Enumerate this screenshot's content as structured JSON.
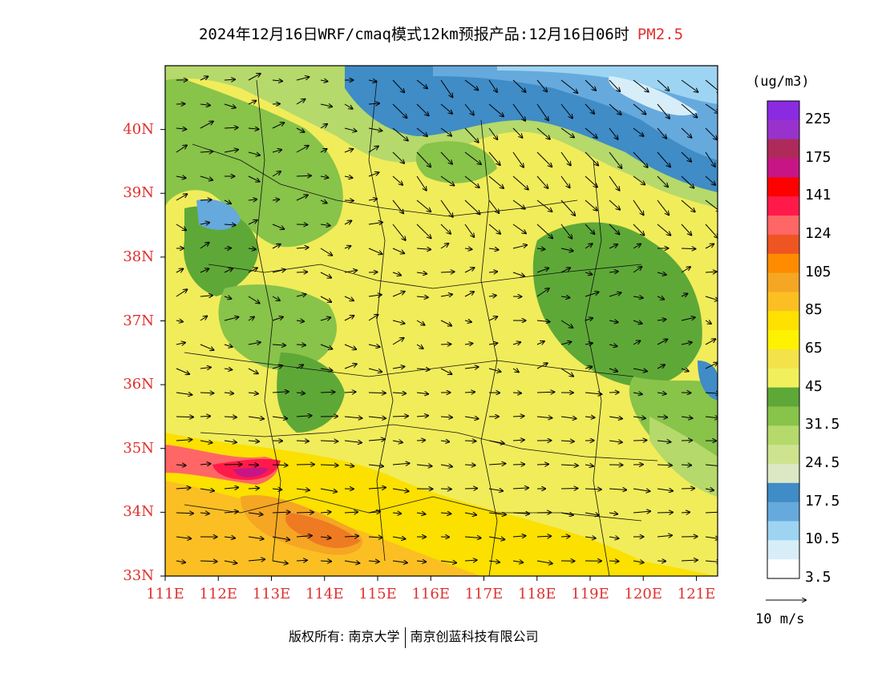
{
  "title": {
    "main": "2024年12月16日WRF/cmaq模式12km预报产品:12月16日06时",
    "pollutant": "PM2.5"
  },
  "map": {
    "lat_labels": [
      "40N",
      "39N",
      "38N",
      "37N",
      "36N",
      "35N",
      "34N",
      "33N"
    ],
    "lon_labels": [
      "111E",
      "112E",
      "113E",
      "114E",
      "115E",
      "116E",
      "117E",
      "118E",
      "119E",
      "120E",
      "121E"
    ],
    "region": {
      "lon": [
        111,
        121.4
      ],
      "lat": [
        33,
        41
      ]
    }
  },
  "colorbar": {
    "unit": "(ug/m3)",
    "labels": [
      "225",
      "175",
      "141",
      "124",
      "105",
      "85",
      "65",
      "45",
      "31.5",
      "24.5",
      "17.5",
      "10.5",
      "3.5"
    ],
    "colors": [
      "#8a2be2",
      "#9932cc",
      "#ad2a5a",
      "#c71585",
      "#ff0000",
      "#ff1a4a",
      "#ff6666",
      "#ee5522",
      "#ff8c00",
      "#f5a623",
      "#fbbf24",
      "#ffe100",
      "#fff200",
      "#f3e24a",
      "#f1f05c",
      "#5ea838",
      "#88c34a",
      "#b5d96a",
      "#cde38e",
      "#dce8c4",
      "#3f8cc6",
      "#66a9dd",
      "#9dd4f2",
      "#d7eef9",
      "#ffffff"
    ]
  },
  "wind_reference": "10 m/s",
  "copyright": {
    "label": "版权所有:",
    "org1": "南京大学",
    "org2": "南京创蓝科技有限公司"
  }
}
